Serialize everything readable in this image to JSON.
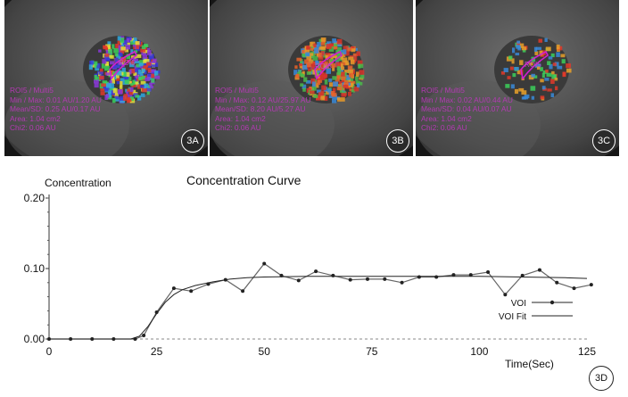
{
  "panels": [
    {
      "badge": "3A",
      "roi_label": "ROI5",
      "lines": [
        "ROI5 / Multi5",
        "Min / Max: 0.01 AU/1.20 AU",
        "Mean/SD: 0.25 AU/0.17 AU",
        "Area: 1.04 cm2",
        "Chi2: 0.06 AU"
      ],
      "map": "blue-green-red"
    },
    {
      "badge": "3B",
      "roi_label": "ROI5",
      "lines": [
        "ROI5 / Multi5",
        "Min / Max: 0.12 AU/25.97 AU",
        "Mean/SD: 8.20 AU/5.27 AU",
        "Area: 1.04 cm2",
        "Chi2: 0.06 AU"
      ],
      "map": "red-orange-green"
    },
    {
      "badge": "3C",
      "roi_label": "ROI5",
      "lines": [
        "ROI5 / Multi5",
        "Min / Max: 0.02 AU/0.44 AU",
        "Mean/SD: 0.04 AU/0.07 AU",
        "Area: 1.04 cm2",
        "Chi2: 0.06 AU"
      ],
      "map": "sparse"
    }
  ],
  "chart_badge": "3D",
  "colors": {
    "overlay_text": "#b33ab3",
    "roi_outline": "#d020d0"
  },
  "chart_data": {
    "type": "line",
    "title": "Concentration Curve",
    "ylabel": "Concentration",
    "xlabel": "Time(Sec)",
    "xlim": [
      0,
      125
    ],
    "ylim": [
      0,
      0.2
    ],
    "xticks": [
      "0",
      "25",
      "50",
      "75",
      "100",
      "125"
    ],
    "yticks": [
      "0.00",
      "0.10",
      "0.20"
    ],
    "legend": "bottom-right",
    "series": [
      {
        "name": "VOI",
        "marker": "dot",
        "x": [
          0,
          5,
          10,
          15,
          20,
          22,
          25,
          29,
          33,
          37,
          41,
          45,
          50,
          54,
          58,
          62,
          66,
          70,
          74,
          78,
          82,
          86,
          90,
          94,
          98,
          102,
          106,
          110,
          114,
          118,
          122,
          126
        ],
        "y": [
          0.0,
          0.0,
          0.0,
          0.0,
          0.0,
          0.005,
          0.038,
          0.072,
          0.068,
          0.078,
          0.084,
          0.068,
          0.107,
          0.09,
          0.083,
          0.096,
          0.09,
          0.084,
          0.085,
          0.085,
          0.08,
          0.088,
          0.088,
          0.091,
          0.091,
          0.095,
          0.063,
          0.09,
          0.098,
          0.08,
          0.072,
          0.077
        ]
      },
      {
        "name": "VOI Fit",
        "marker": "none",
        "x": [
          0,
          5,
          10,
          15,
          19,
          21,
          23,
          25,
          27,
          29,
          31,
          34,
          38,
          42,
          46,
          50,
          60,
          70,
          80,
          90,
          100,
          110,
          120,
          125
        ],
        "y": [
          0.0,
          0.0,
          0.0,
          0.0,
          0.0,
          0.004,
          0.018,
          0.036,
          0.052,
          0.063,
          0.07,
          0.076,
          0.081,
          0.085,
          0.087,
          0.088,
          0.089,
          0.089,
          0.089,
          0.089,
          0.089,
          0.088,
          0.087,
          0.086
        ]
      }
    ]
  }
}
